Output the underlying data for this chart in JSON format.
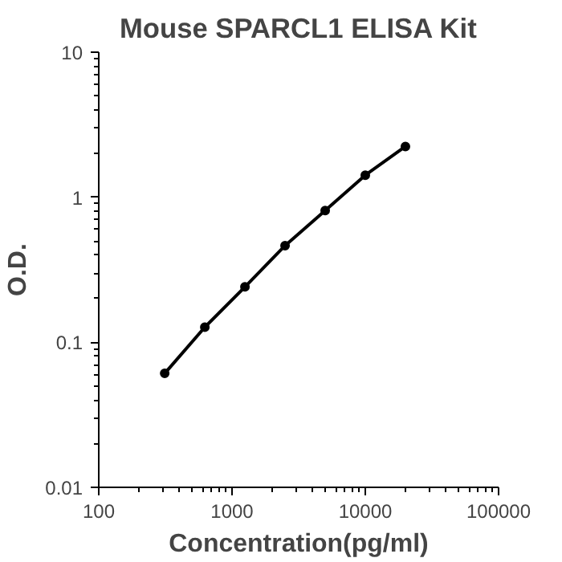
{
  "chart_data": {
    "type": "line",
    "title": "Mouse SPARCL1 ELISA Kit",
    "xlabel": "Concentration(pg/ml)",
    "ylabel": "O.D.",
    "x": [
      312.5,
      625,
      1250,
      2500,
      5000,
      10000,
      20000
    ],
    "series": [
      {
        "color": "#000000",
        "values": [
          0.061,
          0.127,
          0.241,
          0.464,
          0.81,
          1.42,
          2.24
        ]
      }
    ],
    "log": "xy",
    "xlim": [
      100,
      100000
    ],
    "ylim": [
      0.01,
      10
    ],
    "xticks": [
      100,
      1000,
      10000,
      100000
    ],
    "yticks": [
      0.01,
      0.1,
      1,
      10
    ],
    "grid": false,
    "marker": "circle",
    "line_style": "solid"
  }
}
